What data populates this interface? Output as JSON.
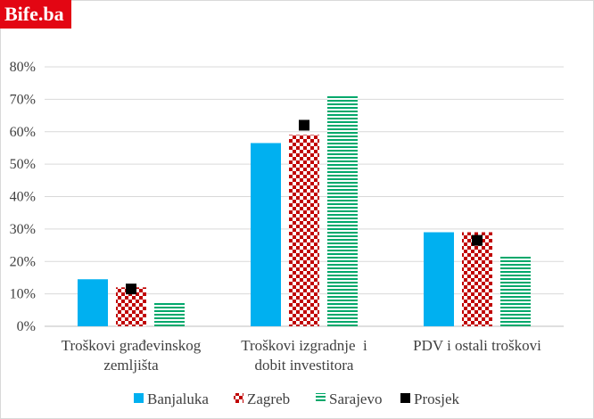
{
  "brand": {
    "logo_text": "Bife.ba"
  },
  "chart_data": {
    "type": "bar",
    "title": "",
    "xlabel": "",
    "ylabel": "",
    "ylim": [
      0,
      0.8
    ],
    "yticks": [
      "0%",
      "10%",
      "20%",
      "30%",
      "40%",
      "50%",
      "60%",
      "70%",
      "80%"
    ],
    "grid": true,
    "legend_position": "bottom",
    "categories": [
      [
        "Troškovi građevinskog",
        "zemljišta"
      ],
      [
        "Troškovi izgradnje  i",
        "dobit investitora"
      ],
      [
        "PDV i ostali troškovi"
      ]
    ],
    "series": [
      {
        "name": "Banjaluka",
        "values": [
          0.145,
          0.565,
          0.29
        ],
        "color": "#00b0f0",
        "pattern": "solid"
      },
      {
        "name": "Zagreb",
        "values": [
          0.12,
          0.59,
          0.29
        ],
        "color": "#c00000",
        "pattern": "checker"
      },
      {
        "name": "Sarajevo",
        "values": [
          0.075,
          0.71,
          0.215
        ],
        "color": "#00a86b",
        "pattern": "stripes"
      }
    ],
    "markers": [
      {
        "name": "Prosjek",
        "values": [
          0.115,
          0.62,
          0.265
        ],
        "color": "#000000"
      }
    ]
  }
}
